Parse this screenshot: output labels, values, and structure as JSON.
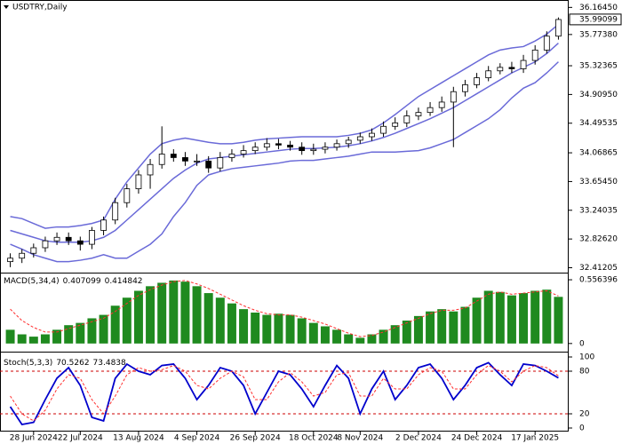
{
  "chart_data": [
    {
      "type": "candlestick",
      "title": "USDTRY,Daily",
      "current_price": 35.99099,
      "categories": [
        null,
        null,
        "28 Jun 2024",
        null,
        null,
        null,
        "22 Jul 2024",
        null,
        null,
        null,
        null,
        "13 Aug 2024",
        null,
        null,
        null,
        null,
        "4 Sep 2024",
        null,
        null,
        null,
        null,
        "26 Sep 2024",
        null,
        null,
        null,
        null,
        "18 Oct 2024",
        null,
        null,
        null,
        "8 Nov 2024",
        null,
        null,
        null,
        null,
        "2 Dec 2024",
        null,
        null,
        null,
        null,
        "24 Dec 2024",
        null,
        null,
        null,
        null,
        "17 Jan 2025",
        null,
        null
      ],
      "open": [
        32.5,
        32.55,
        32.62,
        32.7,
        32.8,
        32.85,
        32.8,
        32.75,
        32.95,
        33.1,
        33.35,
        33.55,
        33.75,
        33.9,
        34.05,
        34.0,
        33.95,
        33.95,
        33.85,
        34.0,
        34.05,
        34.1,
        34.15,
        34.2,
        34.18,
        34.15,
        34.1,
        34.12,
        34.15,
        34.2,
        34.25,
        34.3,
        34.35,
        34.45,
        34.5,
        34.6,
        34.65,
        34.72,
        34.8,
        34.95,
        35.05,
        35.15,
        35.25,
        35.3,
        35.28,
        35.4,
        35.55,
        35.75
      ],
      "high": [
        32.62,
        32.68,
        32.76,
        32.86,
        32.92,
        32.92,
        32.86,
        33.0,
        33.15,
        33.42,
        33.62,
        33.82,
        33.98,
        34.45,
        34.12,
        34.08,
        34.05,
        34.02,
        34.08,
        34.12,
        34.18,
        34.22,
        34.28,
        34.27,
        34.24,
        34.22,
        34.2,
        34.22,
        34.26,
        34.3,
        34.36,
        34.42,
        34.52,
        34.58,
        34.68,
        34.72,
        34.8,
        34.88,
        35.02,
        35.12,
        35.22,
        35.32,
        35.36,
        35.38,
        35.48,
        35.62,
        35.82,
        36.02
      ],
      "low": [
        32.42,
        32.48,
        32.56,
        32.64,
        32.74,
        32.74,
        32.66,
        32.68,
        32.88,
        33.04,
        33.28,
        33.48,
        33.55,
        33.84,
        33.94,
        33.88,
        33.88,
        33.78,
        33.8,
        33.94,
        34.0,
        34.05,
        34.1,
        34.12,
        34.1,
        34.04,
        34.04,
        34.06,
        34.1,
        34.14,
        34.2,
        34.24,
        34.3,
        34.4,
        34.44,
        34.54,
        34.6,
        34.66,
        34.15,
        34.88,
        35.0,
        35.1,
        35.2,
        35.22,
        35.22,
        35.34,
        35.5,
        35.7
      ],
      "close": [
        32.55,
        32.62,
        32.7,
        32.8,
        32.85,
        32.8,
        32.75,
        32.95,
        33.1,
        33.35,
        33.55,
        33.75,
        33.9,
        34.05,
        34.0,
        33.95,
        33.95,
        33.85,
        34.0,
        34.05,
        34.1,
        34.15,
        34.2,
        34.18,
        34.15,
        34.1,
        34.12,
        34.15,
        34.2,
        34.25,
        34.3,
        34.35,
        34.45,
        34.5,
        34.6,
        34.65,
        34.72,
        34.8,
        34.95,
        35.05,
        35.15,
        35.25,
        35.3,
        35.28,
        35.4,
        35.55,
        35.75,
        35.99
      ],
      "bands": [
        {
          "color": "#6a6ad8",
          "values": [
            32.95,
            32.9,
            32.85,
            32.8,
            32.78,
            32.78,
            32.78,
            32.8,
            32.85,
            32.95,
            33.1,
            33.25,
            33.4,
            33.55,
            33.7,
            33.82,
            33.92,
            33.98,
            34.0,
            34.02,
            34.04,
            34.06,
            34.08,
            34.1,
            34.12,
            34.13,
            34.13,
            34.14,
            34.15,
            34.17,
            34.2,
            34.24,
            34.29,
            34.35,
            34.42,
            34.49,
            34.56,
            34.64,
            34.72,
            34.82,
            34.92,
            35.02,
            35.12,
            35.22,
            35.3,
            35.38,
            35.5,
            35.65
          ]
        },
        {
          "color": "#6a6ad8",
          "values": [
            33.15,
            33.12,
            33.05,
            32.98,
            33.0,
            33.0,
            33.02,
            33.05,
            33.1,
            33.4,
            33.65,
            33.85,
            34.05,
            34.2,
            34.25,
            34.28,
            34.25,
            34.22,
            34.2,
            34.2,
            34.22,
            34.25,
            34.27,
            34.28,
            34.29,
            34.3,
            34.3,
            34.3,
            34.3,
            34.32,
            34.35,
            34.4,
            34.5,
            34.62,
            34.75,
            34.88,
            34.98,
            35.08,
            35.18,
            35.28,
            35.38,
            35.48,
            35.55,
            35.58,
            35.6,
            35.68,
            35.78,
            35.92
          ]
        },
        {
          "color": "#6a6ad8",
          "values": [
            32.75,
            32.68,
            32.6,
            32.55,
            32.5,
            32.5,
            32.52,
            32.55,
            32.6,
            32.55,
            32.55,
            32.65,
            32.75,
            32.9,
            33.15,
            33.35,
            33.6,
            33.75,
            33.8,
            33.84,
            33.86,
            33.88,
            33.9,
            33.92,
            33.95,
            33.96,
            33.96,
            33.98,
            34.0,
            34.02,
            34.05,
            34.08,
            34.08,
            34.08,
            34.09,
            34.1,
            34.14,
            34.2,
            34.26,
            34.36,
            34.46,
            34.56,
            34.69,
            34.86,
            35.0,
            35.08,
            35.22,
            35.38
          ]
        }
      ],
      "ylim": [
        32.38,
        36.22
      ],
      "yticks": [
        {
          "value": 32.41205,
          "label": "32.41205"
        },
        {
          "value": 32.8262,
          "label": "32.82620"
        },
        {
          "value": 33.24035,
          "label": "33.24035"
        },
        {
          "value": 33.6545,
          "label": "33.65450"
        },
        {
          "value": 34.06865,
          "label": "34.06865"
        },
        {
          "value": 34.49535,
          "label": "34.49535"
        },
        {
          "value": 34.9095,
          "label": "34.90950"
        },
        {
          "value": 35.32365,
          "label": "35.32365"
        },
        {
          "value": 35.7738,
          "label": "35.77380"
        },
        {
          "value": 36.1645,
          "label": "36.16450"
        }
      ]
    },
    {
      "type": "bar",
      "title": "MACD(5,34,4)",
      "current_values": [
        0.407099,
        0.414842
      ],
      "color": "#1f8a1f",
      "values": [
        0.12,
        0.08,
        0.06,
        0.08,
        0.12,
        0.16,
        0.18,
        0.22,
        0.25,
        0.33,
        0.4,
        0.46,
        0.5,
        0.53,
        0.55,
        0.54,
        0.5,
        0.44,
        0.4,
        0.35,
        0.3,
        0.27,
        0.25,
        0.26,
        0.25,
        0.22,
        0.18,
        0.15,
        0.12,
        0.08,
        0.05,
        0.08,
        0.12,
        0.16,
        0.2,
        0.24,
        0.28,
        0.3,
        0.28,
        0.32,
        0.4,
        0.46,
        0.45,
        0.42,
        0.44,
        0.46,
        0.47,
        0.407099
      ],
      "signal": {
        "color": "#ff3030",
        "values": [
          0.3,
          0.2,
          0.14,
          0.1,
          0.1,
          0.13,
          0.16,
          0.19,
          0.22,
          0.28,
          0.35,
          0.42,
          0.47,
          0.51,
          0.54,
          0.55,
          0.52,
          0.48,
          0.43,
          0.38,
          0.33,
          0.29,
          0.26,
          0.25,
          0.25,
          0.23,
          0.2,
          0.17,
          0.13,
          0.09,
          0.06,
          0.07,
          0.1,
          0.14,
          0.18,
          0.22,
          0.26,
          0.29,
          0.29,
          0.31,
          0.37,
          0.43,
          0.45,
          0.43,
          0.44,
          0.45,
          0.46,
          0.414842
        ]
      },
      "ylim": [
        -0.04,
        0.58
      ],
      "yticks": [
        0,
        0.556396
      ]
    },
    {
      "type": "line",
      "title": "Stoch(5,3,3)",
      "current_values": [
        70.5262,
        73.4838
      ],
      "series": [
        {
          "color": "#0000cc",
          "values": [
            30,
            5,
            8,
            40,
            70,
            85,
            60,
            15,
            10,
            70,
            90,
            80,
            75,
            88,
            90,
            70,
            40,
            60,
            85,
            80,
            60,
            20,
            50,
            80,
            75,
            55,
            30,
            60,
            88,
            70,
            20,
            55,
            80,
            40,
            60,
            85,
            90,
            70,
            40,
            60,
            85,
            92,
            75,
            60,
            90,
            88,
            80,
            70.5262
          ]
        },
        {
          "color": "#ff3030",
          "values": [
            45,
            20,
            10,
            25,
            55,
            75,
            70,
            40,
            20,
            45,
            75,
            85,
            80,
            82,
            88,
            80,
            60,
            55,
            70,
            80,
            72,
            40,
            40,
            65,
            78,
            65,
            45,
            50,
            75,
            78,
            45,
            45,
            70,
            55,
            55,
            75,
            85,
            80,
            55,
            55,
            75,
            88,
            80,
            65,
            80,
            88,
            85,
            73.4838
          ]
        }
      ],
      "levels": [
        20,
        80
      ],
      "level_color": "#cc0000",
      "ylim": [
        -5,
        105
      ],
      "yticks": [
        0,
        20,
        80,
        100
      ]
    }
  ]
}
